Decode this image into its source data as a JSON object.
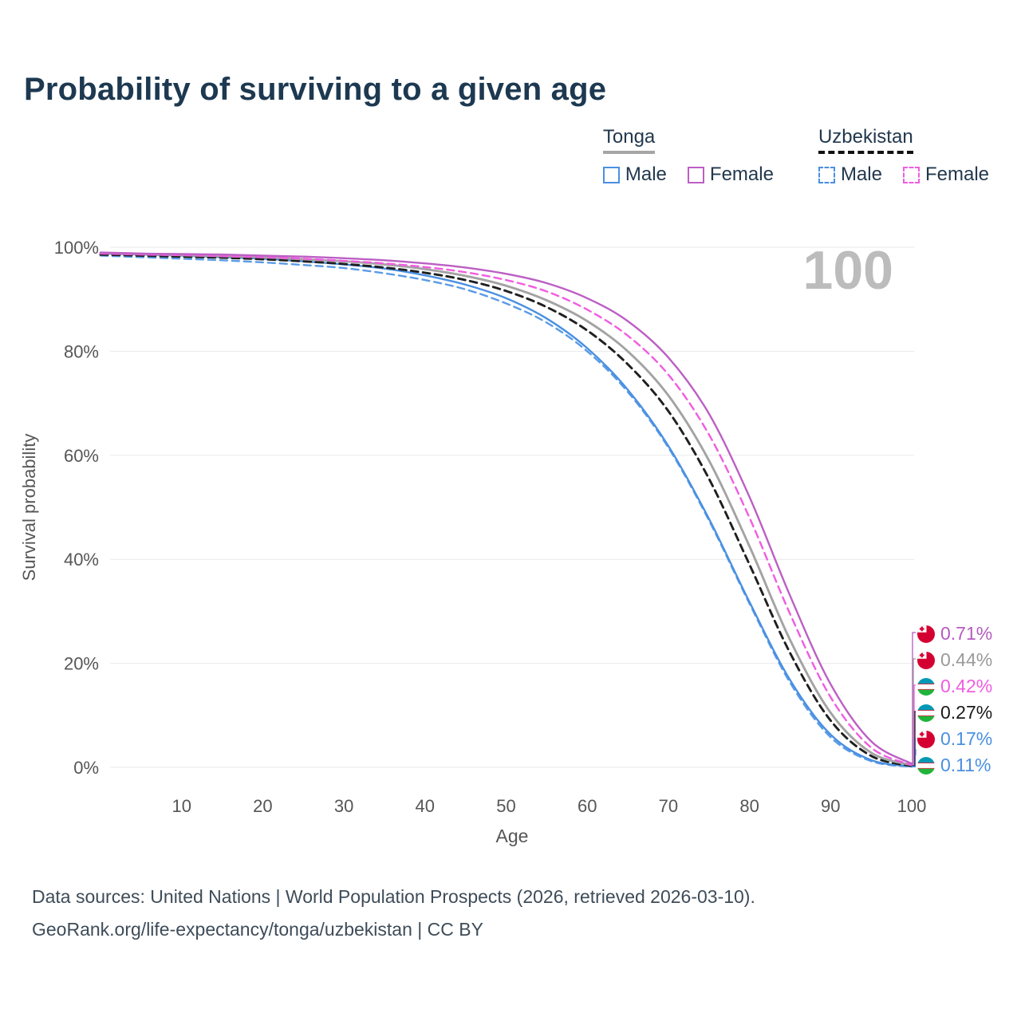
{
  "page": {
    "title": "Probability of surviving to a given age",
    "footer_line1": "Data sources: United Nations | World Population Prospects (2026, retrieved 2026-03-10).",
    "footer_line2": "GeoRank.org/life-expectancy/tonga/uzbekistan | CC BY"
  },
  "legend": {
    "groups": [
      {
        "label": "Tonga",
        "style": "solid",
        "underline_color": "#a6a6a6",
        "items": [
          {
            "label": "Male",
            "color": "#4a90e2",
            "dashed": false
          },
          {
            "label": "Female",
            "color": "#bc5fc4",
            "dashed": false
          }
        ]
      },
      {
        "label": "Uzbekistan",
        "style": "dashed",
        "underline_color": "#111111",
        "items": [
          {
            "label": "Male",
            "color": "#4a90e2",
            "dashed": true
          },
          {
            "label": "Female",
            "color": "#f05ce0",
            "dashed": true
          }
        ]
      }
    ]
  },
  "chart_data": {
    "type": "line",
    "title": "Probability of surviving to a given age",
    "xlabel": "Age",
    "ylabel": "Survival probability",
    "xlim": [
      0,
      100
    ],
    "ylim": [
      0,
      100
    ],
    "grid": "horizontal",
    "legend_position": "top-right",
    "watermark": "100",
    "x_ticks": [
      10,
      20,
      30,
      40,
      50,
      60,
      70,
      80,
      90,
      100
    ],
    "y_ticks": [
      {
        "value": 0,
        "label": "0%"
      },
      {
        "value": 20,
        "label": "20%"
      },
      {
        "value": 40,
        "label": "40%"
      },
      {
        "value": 60,
        "label": "60%"
      },
      {
        "value": 80,
        "label": "80%"
      },
      {
        "value": 100,
        "label": "100%"
      }
    ],
    "x": [
      0,
      5,
      10,
      15,
      20,
      25,
      30,
      35,
      40,
      45,
      50,
      55,
      60,
      65,
      70,
      75,
      80,
      85,
      90,
      95,
      100
    ],
    "series": [
      {
        "name": "Uzbekistan Male",
        "country": "Uzbekistan",
        "sex": "Male",
        "color": "#5a9be6",
        "dashed": true,
        "values": [
          98.4,
          98.1,
          97.8,
          97.5,
          97.1,
          96.6,
          96.0,
          95.0,
          93.7,
          91.9,
          89.2,
          85.5,
          80.0,
          72.2,
          61.5,
          47.5,
          31.5,
          16.3,
          5.8,
          1.2,
          0.11
        ]
      },
      {
        "name": "Tonga Male",
        "country": "Tonga",
        "sex": "Male",
        "color": "#4a90e2",
        "dashed": false,
        "values": [
          98.8,
          98.6,
          98.4,
          98.1,
          97.8,
          97.3,
          96.7,
          95.9,
          94.6,
          92.8,
          90.2,
          86.3,
          80.6,
          72.6,
          61.8,
          47.8,
          31.8,
          16.8,
          6.3,
          1.4,
          0.17
        ]
      },
      {
        "name": "Uzbekistan Both sexes",
        "country": "Uzbekistan",
        "sex": "Both",
        "color": "#1f1f1f",
        "dashed": true,
        "values": [
          98.6,
          98.4,
          98.2,
          98.0,
          97.7,
          97.3,
          96.8,
          96.1,
          95.1,
          93.7,
          91.6,
          88.5,
          84.0,
          77.5,
          68.5,
          55.5,
          39.0,
          22.0,
          9.0,
          2.2,
          0.27
        ]
      },
      {
        "name": "Tonga Both sexes",
        "country": "Tonga",
        "sex": "Both",
        "color": "#a3a3a3",
        "dashed": false,
        "values": [
          98.9,
          98.7,
          98.5,
          98.3,
          98.1,
          97.7,
          97.3,
          96.7,
          95.8,
          94.5,
          92.6,
          89.8,
          85.8,
          80.0,
          71.5,
          59.0,
          42.5,
          24.5,
          10.5,
          2.8,
          0.44
        ]
      },
      {
        "name": "Uzbekistan Female",
        "country": "Uzbekistan",
        "sex": "Female",
        "color": "#f05ce0",
        "dashed": true,
        "values": [
          98.8,
          98.6,
          98.5,
          98.3,
          98.1,
          97.8,
          97.4,
          96.9,
          96.2,
          95.2,
          93.7,
          91.5,
          88.0,
          83.0,
          75.5,
          64.0,
          48.0,
          29.5,
          13.5,
          3.8,
          0.42
        ]
      },
      {
        "name": "Tonga Female",
        "country": "Tonga",
        "sex": "Female",
        "color": "#bc5fc4",
        "dashed": false,
        "values": [
          99.0,
          98.8,
          98.7,
          98.6,
          98.4,
          98.2,
          97.9,
          97.5,
          96.9,
          96.1,
          94.9,
          93.1,
          90.2,
          85.8,
          78.8,
          68.0,
          52.0,
          33.0,
          16.0,
          5.0,
          0.71
        ]
      }
    ],
    "end_labels": [
      {
        "text": "0.71%",
        "end_value": 0.71,
        "color": "#b55bc0",
        "flag": "tonga",
        "series": "Tonga Female"
      },
      {
        "text": "0.44%",
        "end_value": 0.44,
        "color": "#9a9a9a",
        "flag": "tonga",
        "series": "Tonga Both sexes"
      },
      {
        "text": "0.42%",
        "end_value": 0.42,
        "color": "#f05ce0",
        "flag": "uzbekistan",
        "series": "Uzbekistan Female"
      },
      {
        "text": "0.27%",
        "end_value": 0.27,
        "color": "#1a1a1a",
        "flag": "uzbekistan",
        "series": "Uzbekistan Both sexes"
      },
      {
        "text": "0.17%",
        "end_value": 0.17,
        "color": "#4a90e2",
        "flag": "tonga",
        "series": "Tonga Male"
      },
      {
        "text": "0.11%",
        "end_value": 0.11,
        "color": "#4a90e2",
        "flag": "uzbekistan",
        "series": "Uzbekistan Male"
      }
    ]
  }
}
